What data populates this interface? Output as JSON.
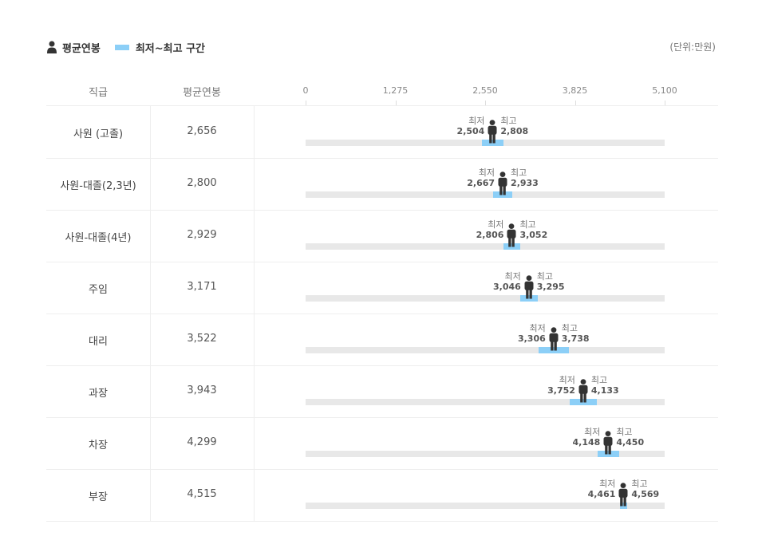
{
  "legend": {
    "avg_label": "평균연봉",
    "range_label": "최저~최고 구간"
  },
  "unit_label": "(단위:만원)",
  "headers": {
    "rank": "직급",
    "avg": "평균연봉"
  },
  "min_caption": "최저",
  "max_caption": "최고",
  "colors": {
    "range": "#8ccff7",
    "track": "#e8e8e8",
    "person": "#333333"
  },
  "chart_data": {
    "type": "range-bar",
    "x_axis_ticks": [
      "0",
      "1,275",
      "2,550",
      "3,825",
      "5,100"
    ],
    "xlim": [
      0,
      5100
    ],
    "rows": [
      {
        "rank": "사원 (고졸)",
        "avg": 2656,
        "avg_label": "2,656",
        "min": 2504,
        "min_label": "2,504",
        "max": 2808,
        "max_label": "2,808"
      },
      {
        "rank": "사원-대졸(2,3년)",
        "avg": 2800,
        "avg_label": "2,800",
        "min": 2667,
        "min_label": "2,667",
        "max": 2933,
        "max_label": "2,933"
      },
      {
        "rank": "사원-대졸(4년)",
        "avg": 2929,
        "avg_label": "2,929",
        "min": 2806,
        "min_label": "2,806",
        "max": 3052,
        "max_label": "3,052"
      },
      {
        "rank": "주임",
        "avg": 3171,
        "avg_label": "3,171",
        "min": 3046,
        "min_label": "3,046",
        "max": 3295,
        "max_label": "3,295"
      },
      {
        "rank": "대리",
        "avg": 3522,
        "avg_label": "3,522",
        "min": 3306,
        "min_label": "3,306",
        "max": 3738,
        "max_label": "3,738"
      },
      {
        "rank": "과장",
        "avg": 3943,
        "avg_label": "3,943",
        "min": 3752,
        "min_label": "3,752",
        "max": 4133,
        "max_label": "4,133"
      },
      {
        "rank": "차장",
        "avg": 4299,
        "avg_label": "4,299",
        "min": 4148,
        "min_label": "4,148",
        "max": 4450,
        "max_label": "4,450"
      },
      {
        "rank": "부장",
        "avg": 4515,
        "avg_label": "4,515",
        "min": 4461,
        "min_label": "4,461",
        "max": 4569,
        "max_label": "4,569"
      }
    ]
  }
}
